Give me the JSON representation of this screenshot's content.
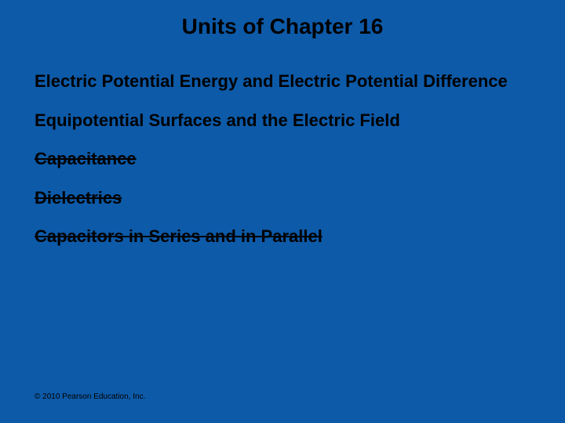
{
  "title": "Units of Chapter 16",
  "items": [
    {
      "text": "Electric Potential Energy and Electric Potential Difference",
      "strike": false
    },
    {
      "text": "Equipotential Surfaces and the Electric Field",
      "strike": false
    },
    {
      "text": "Capacitance",
      "strike": true
    },
    {
      "text": "Dielectrics",
      "strike": true
    },
    {
      "text": "Capacitors in Series and in Parallel",
      "strike": true
    }
  ],
  "copyright": "© 2010 Pearson Education, Inc.",
  "colors": {
    "background": "#0d5aa8",
    "text": "#000000"
  },
  "typography": {
    "title_fontsize": 28,
    "item_fontsize": 22,
    "copyright_fontsize": 10,
    "font_family": "Arial"
  }
}
